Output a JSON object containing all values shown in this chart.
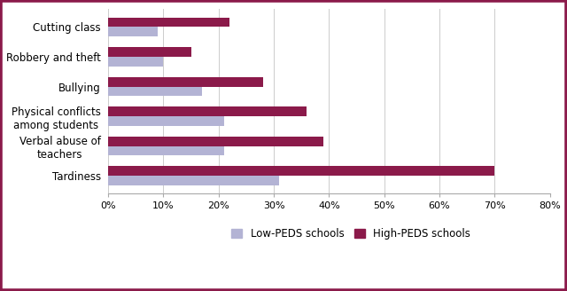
{
  "categories": [
    "Cutting class",
    "Robbery and theft",
    "Bullying",
    "Physical conflicts\namong students",
    "Verbal abuse of\nteachers",
    "Tardiness"
  ],
  "low_peds": [
    9,
    10,
    17,
    21,
    21,
    31
  ],
  "high_peds": [
    22,
    15,
    28,
    36,
    39,
    70
  ],
  "low_color": "#b3b3d4",
  "high_color": "#8b1a4a",
  "border_color": "#8b1a4a",
  "background_color": "#ffffff",
  "legend_low": "Low-PEDS schools",
  "legend_high": "High-PEDS schools",
  "xlim": [
    0,
    80
  ],
  "xticks": [
    0,
    10,
    20,
    30,
    40,
    50,
    60,
    70,
    80
  ],
  "xticklabels": [
    "0%",
    "10%",
    "20%",
    "30%",
    "40%",
    "50%",
    "60%",
    "70%",
    "80%"
  ],
  "bar_height": 0.32,
  "figsize": [
    6.4,
    3.28
  ],
  "dpi": 100
}
